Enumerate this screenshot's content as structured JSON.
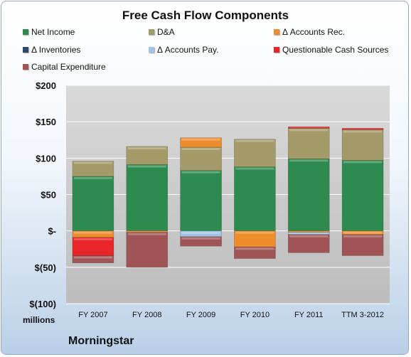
{
  "chart_data": {
    "type": "bar",
    "stacked": true,
    "title": "Free Cash Flow Components",
    "categories": [
      "FY 2007",
      "FY 2008",
      "FY 2009",
      "FY 2010",
      "FY 2011",
      "TTM 3-2012"
    ],
    "y_ticks": [
      "$200",
      "$150",
      "$100",
      "$50",
      "$-",
      "$(50)",
      "$(100)"
    ],
    "ylim": [
      -100,
      200
    ],
    "units_label": "millions",
    "grid": true,
    "legend_position": "top",
    "series": [
      {
        "name": "Net Income",
        "color": "#2e8b4f",
        "values": [
          75,
          91,
          83,
          88,
          99,
          97
        ]
      },
      {
        "name": "D&A",
        "color": "#a39a68",
        "values": [
          21,
          25,
          32,
          38,
          42,
          42
        ]
      },
      {
        "name": "Δ Accounts Rec.",
        "color": "#ee8b2c",
        "values": [
          -9,
          -2,
          13,
          -22,
          -2,
          -5
        ]
      },
      {
        "name": "Δ Inventories",
        "color": "#2e4a6b",
        "values": [
          0,
          0,
          0,
          0,
          0,
          0
        ]
      },
      {
        "name": "Δ Accounts Pay.",
        "color": "#9fc4e6",
        "values": [
          0,
          0,
          -8,
          0,
          -3,
          0
        ]
      },
      {
        "name": "Questionable Cash Sources",
        "color": "#e8262a",
        "values": [
          -25,
          0,
          0,
          0,
          2,
          2
        ]
      },
      {
        "name": "Capital Expenditure",
        "color": "#a05456",
        "values": [
          -10,
          -48,
          -13,
          -16,
          -25,
          -29
        ]
      }
    ],
    "source": "Morningstar"
  }
}
